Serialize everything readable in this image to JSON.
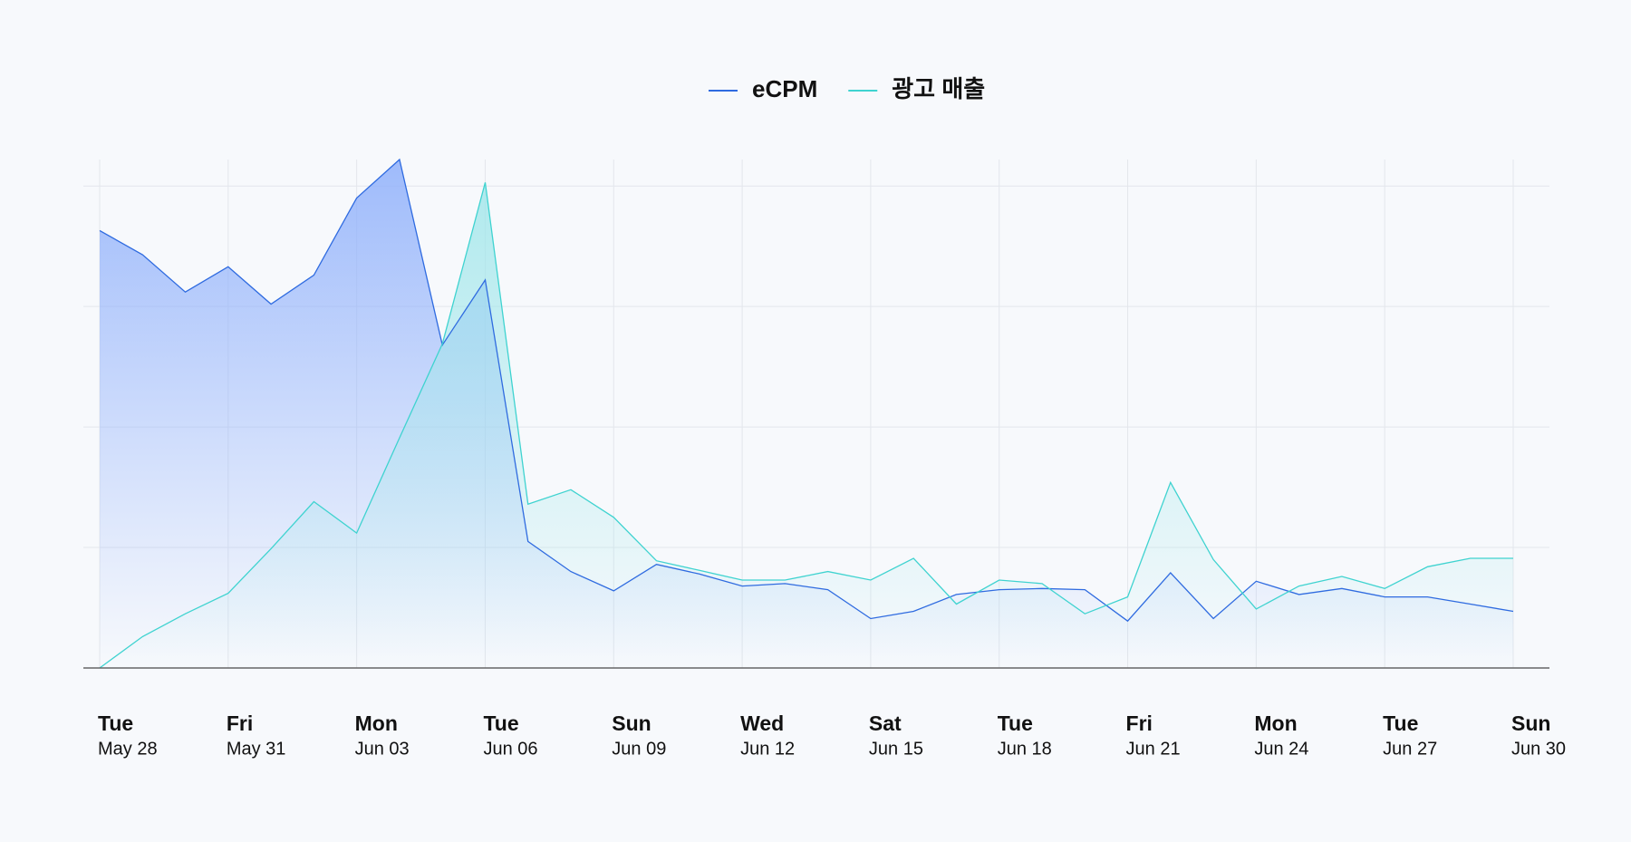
{
  "chart_data": {
    "type": "line",
    "categories": [
      "May 28",
      null,
      null,
      "May 31",
      null,
      null,
      "Jun 03",
      null,
      null,
      "Jun 06",
      null,
      null,
      "Jun 09",
      null,
      null,
      "Jun 12",
      null,
      null,
      "Jun 15",
      null,
      null,
      "Jun 18",
      null,
      null,
      "Jun 21",
      null,
      null,
      "Jun 24",
      null,
      null,
      "Jun 27",
      null,
      null,
      "Jun 30"
    ],
    "category_weekdays": [
      "Tue",
      null,
      null,
      "Fri",
      null,
      null,
      "Mon",
      null,
      null,
      "Tue",
      null,
      null,
      "Sun",
      null,
      null,
      "Wed",
      null,
      null,
      "Sat",
      null,
      null,
      "Tue",
      null,
      null,
      "Fri",
      null,
      null,
      "Mon",
      null,
      null,
      "Tue",
      null,
      null,
      "Sun"
    ],
    "series": [
      {
        "name": "eCPM",
        "color": "#2f6be0",
        "fill": "#8fb0fb",
        "values": [
          3.63,
          3.43,
          3.12,
          3.33,
          3.02,
          3.26,
          3.9,
          4.22,
          2.68,
          3.22,
          1.05,
          0.8,
          0.64,
          0.86,
          0.78,
          0.68,
          0.7,
          0.65,
          0.41,
          0.47,
          0.61,
          0.65,
          0.66,
          0.65,
          0.39,
          0.79,
          0.41,
          0.72,
          0.61,
          0.66,
          0.59,
          0.59,
          0.53,
          0.47
        ]
      },
      {
        "name": "광고 매출",
        "color": "#3fd3d0",
        "fill": "#9fe6ea",
        "values": [
          0,
          0.26,
          0.45,
          0.62,
          0.99,
          1.38,
          1.12,
          1.91,
          2.69,
          4.03,
          1.36,
          1.48,
          1.25,
          0.89,
          0.81,
          0.73,
          0.73,
          0.8,
          0.73,
          0.91,
          0.53,
          0.73,
          0.7,
          0.45,
          0.59,
          1.54,
          0.9,
          0.49,
          0.68,
          0.76,
          0.66,
          0.84,
          0.91,
          0.91
        ]
      }
    ],
    "ylim": [
      0,
      4.22
    ],
    "yticks": [
      1,
      2,
      3,
      4
    ],
    "grid": true
  }
}
